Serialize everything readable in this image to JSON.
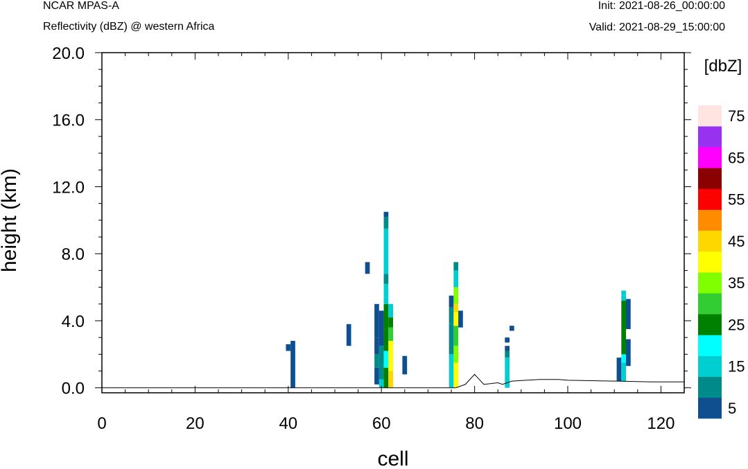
{
  "header": {
    "model": "NCAR MPAS-A",
    "field": "Reflectivity (dBZ) @ western Africa",
    "init": "Init: 2021-08-26_00:00:00",
    "valid": "Valid: 2021-08-29_15:00:00"
  },
  "chart_data": {
    "type": "heatmap",
    "title": "NCAR MPAS-A",
    "subtitle": "Reflectivity (dBZ) @ western Africa",
    "xlabel": "cell",
    "ylabel": "height (km)",
    "xlim": [
      0,
      125
    ],
    "ylim": [
      -0.3,
      20.0
    ],
    "xticks": [
      0,
      20,
      40,
      60,
      80,
      100,
      120
    ],
    "xtick_labels": [
      "0",
      "20",
      "40",
      "60",
      "80",
      "100",
      "120"
    ],
    "yticks": [
      0,
      4,
      8,
      12,
      16,
      20
    ],
    "ytick_labels": [
      "0.0",
      "4.0",
      "8.0",
      "12.0",
      "16.0",
      "20.0"
    ],
    "colorbar": {
      "title": "[dbZ]",
      "levels": [
        5,
        10,
        15,
        20,
        25,
        30,
        35,
        40,
        45,
        50,
        55,
        60,
        65,
        70,
        75
      ],
      "tick_labels": [
        "5",
        "15",
        "25",
        "35",
        "45",
        "55",
        "65",
        "75"
      ],
      "colors": [
        "#0f4f8f",
        "#008b8b",
        "#00ced1",
        "#00ffff",
        "#008000",
        "#32cd32",
        "#7fff00",
        "#ffff00",
        "#ffd700",
        "#ff8c00",
        "#ff0000",
        "#8b0000",
        "#ff00ff",
        "#9932f0",
        "#ffe4e1"
      ]
    },
    "cells": [
      [
        40,
        2.2,
        2.6,
        5
      ],
      [
        41,
        0,
        2.8,
        5
      ],
      [
        53,
        2.5,
        3.8,
        5
      ],
      [
        57,
        6.8,
        7.5,
        5
      ],
      [
        59,
        0.2,
        1.2,
        5
      ],
      [
        59,
        1.2,
        2.0,
        10
      ],
      [
        59,
        2.0,
        3.0,
        5
      ],
      [
        59,
        3.0,
        5.0,
        5
      ],
      [
        60,
        0,
        0.5,
        15
      ],
      [
        60,
        0.5,
        2.5,
        10
      ],
      [
        60,
        2.5,
        4.6,
        5
      ],
      [
        61,
        0,
        1.2,
        25
      ],
      [
        61,
        1.2,
        2.2,
        20
      ],
      [
        61,
        2.2,
        3.5,
        25
      ],
      [
        61,
        3.5,
        5.0,
        25
      ],
      [
        61,
        5.0,
        5.4,
        15
      ],
      [
        61,
        5.4,
        6.2,
        15
      ],
      [
        61,
        6.2,
        6.8,
        10
      ],
      [
        61,
        6.8,
        9.5,
        15
      ],
      [
        61,
        9.5,
        10.2,
        10
      ],
      [
        61,
        10.2,
        10.5,
        5
      ],
      [
        62,
        0,
        1.0,
        45
      ],
      [
        62,
        1.0,
        2.8,
        40
      ],
      [
        62,
        2.8,
        3.6,
        30
      ],
      [
        62,
        3.6,
        4.2,
        25
      ],
      [
        62,
        4.2,
        5.0,
        15
      ],
      [
        65,
        0.8,
        1.9,
        5
      ],
      [
        75,
        0,
        2.0,
        15
      ],
      [
        75,
        2.0,
        3.8,
        10
      ],
      [
        75,
        3.8,
        4.8,
        10
      ],
      [
        75,
        4.8,
        5.5,
        5
      ],
      [
        76,
        0,
        1.5,
        40
      ],
      [
        76,
        1.5,
        2.5,
        35
      ],
      [
        76,
        2.5,
        3.7,
        30
      ],
      [
        76,
        3.7,
        4.5,
        40
      ],
      [
        76,
        4.5,
        5.0,
        45
      ],
      [
        76,
        5.0,
        6.0,
        35
      ],
      [
        76,
        6.0,
        7.0,
        15
      ],
      [
        76,
        7.0,
        7.5,
        10
      ],
      [
        77,
        3.6,
        4.6,
        5
      ],
      [
        87,
        0,
        1.8,
        15
      ],
      [
        87,
        1.8,
        2.2,
        10
      ],
      [
        87,
        2.2,
        2.5,
        5
      ],
      [
        87,
        2.7,
        3.0,
        5
      ],
      [
        88,
        3.4,
        3.7,
        5
      ],
      [
        111,
        0.4,
        1.8,
        5
      ],
      [
        112,
        0.4,
        1.5,
        15
      ],
      [
        112,
        1.5,
        2.0,
        20
      ],
      [
        112,
        2.0,
        5.2,
        25
      ],
      [
        112,
        5.2,
        5.5,
        15
      ],
      [
        112,
        5.5,
        5.8,
        15
      ],
      [
        113,
        1.3,
        2.9,
        5
      ],
      [
        113,
        3.5,
        5.3,
        5
      ]
    ],
    "terrain": [
      [
        0,
        0
      ],
      [
        76,
        0
      ],
      [
        78,
        0.2
      ],
      [
        80,
        0.8
      ],
      [
        81,
        0.5
      ],
      [
        82,
        0.2
      ],
      [
        85,
        0.3
      ],
      [
        86,
        0.2
      ],
      [
        88,
        0.4
      ],
      [
        94,
        0.5
      ],
      [
        98,
        0.5
      ],
      [
        100,
        0.45
      ],
      [
        110,
        0.4
      ],
      [
        118,
        0.35
      ],
      [
        125,
        0.35
      ]
    ]
  }
}
